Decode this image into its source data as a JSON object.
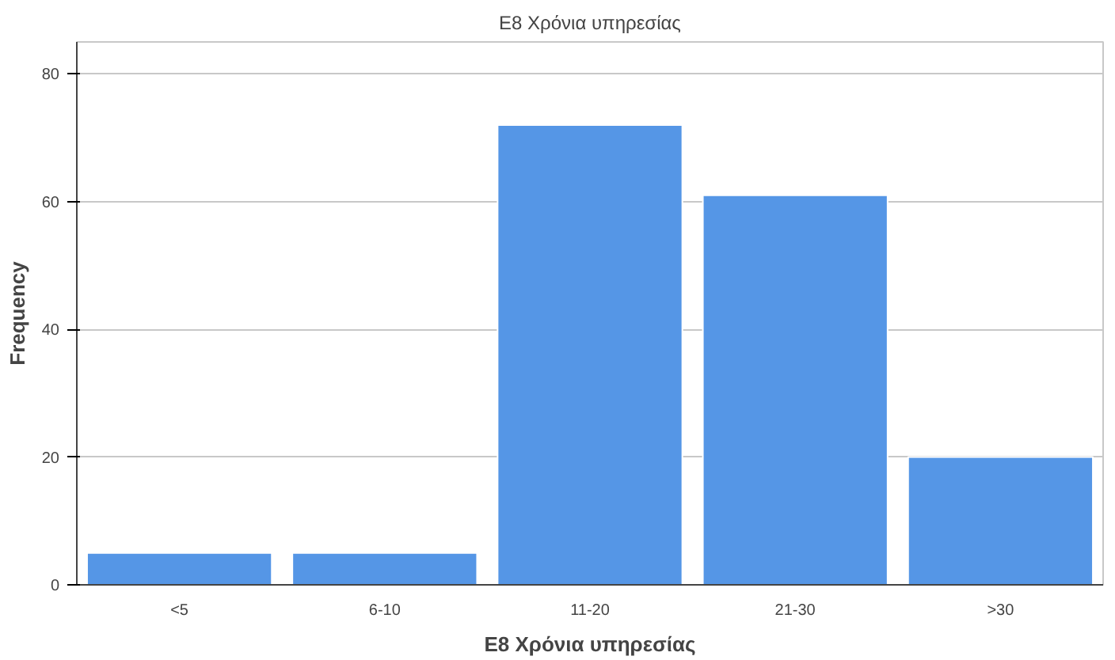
{
  "chart_data": {
    "type": "bar",
    "title": "E8 Χρόνια υπηρεσίας",
    "xlabel": "E8 Χρόνια υπηρεσίας",
    "ylabel": "Frequency",
    "categories": [
      "<5",
      "6-10",
      "11-20",
      "21-30",
      ">30"
    ],
    "values": [
      5,
      5,
      72,
      61,
      20
    ],
    "color": "#5596e6",
    "ylim": [
      0,
      85
    ],
    "yticks": [
      0,
      20,
      40,
      60,
      80
    ],
    "grid": "y"
  }
}
